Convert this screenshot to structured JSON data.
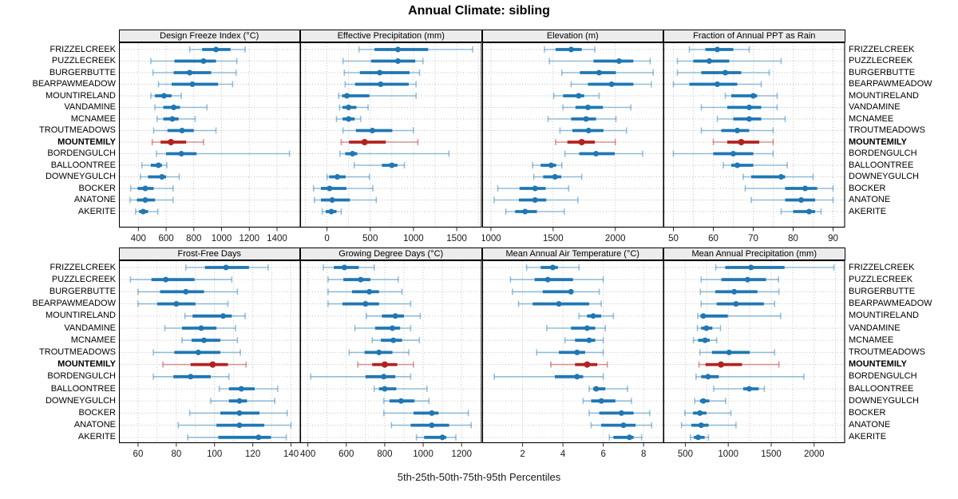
{
  "title": "Annual Climate: sibling",
  "caption": "5th-25th-50th-75th-95th Percentiles",
  "colors": {
    "series_blue": "#1f77b4",
    "series_blue_light": "rgba(31,119,180,0.45)",
    "highlight_red": "#b22222",
    "highlight_red_light": "rgba(178,34,34,0.45)",
    "grid": "#bdbdbd",
    "strip_bg": "#ececec",
    "frame": "#000000",
    "tick": "#333333"
  },
  "chart_data": {
    "type": "trellis-dotplot-percentiles",
    "percentile_labels": [
      "5th",
      "25th",
      "50th",
      "75th",
      "95th"
    ],
    "sites": [
      "FRIZZELCREEK",
      "PUZZLECREEK",
      "BURGERBUTTE",
      "BEARPAWMEADOW",
      "MOUNTIRELAND",
      "VANDAMINE",
      "MCNAMEE",
      "TROUTMEADOWS",
      "MOUNTEMILY",
      "BORDENGULCH",
      "BALLOONTREE",
      "DOWNEYGULCH",
      "BOCKER",
      "ANATONE",
      "AKERITE"
    ],
    "highlight_site": "MOUNTEMILY",
    "layout": {
      "rows": 2,
      "cols": 4,
      "legend": "none",
      "grid": "dotted"
    },
    "panels": [
      {
        "title": "Design Freeze Index (°C)",
        "row": 0,
        "col": 0,
        "xlim": [
          260,
          1570
        ],
        "grid_ticks": [
          400,
          600,
          800,
          1000,
          1200,
          1400
        ],
        "axis_ticks": [
          400,
          600,
          800,
          1000,
          1200,
          1400
        ],
        "axis_labels": [
          "400",
          "600",
          "800",
          "1000",
          "1200",
          "1400"
        ],
        "values": [
          [
            770,
            860,
            960,
            1065,
            1170
          ],
          [
            490,
            660,
            870,
            960,
            1110
          ],
          [
            505,
            655,
            770,
            925,
            1105
          ],
          [
            545,
            640,
            790,
            975,
            1080
          ],
          [
            490,
            520,
            585,
            640,
            710
          ],
          [
            520,
            580,
            655,
            700,
            895
          ],
          [
            535,
            580,
            645,
            690,
            810
          ],
          [
            510,
            610,
            715,
            800,
            960
          ],
          [
            500,
            560,
            635,
            745,
            870
          ],
          [
            530,
            600,
            710,
            820,
            1490
          ],
          [
            425,
            490,
            545,
            570,
            605
          ],
          [
            415,
            470,
            570,
            600,
            695
          ],
          [
            345,
            395,
            450,
            510,
            650
          ],
          [
            340,
            390,
            450,
            520,
            650
          ],
          [
            380,
            405,
            435,
            470,
            540
          ]
        ]
      },
      {
        "title": "Effective Precipitation (mm)",
        "row": 0,
        "col": 1,
        "xlim": [
          -310,
          1790
        ],
        "grid_ticks": [
          -250,
          0,
          250,
          500,
          750,
          1000,
          1250,
          1500,
          1750
        ],
        "axis_ticks": [
          0,
          500,
          1000,
          1500
        ],
        "axis_labels": [
          "0",
          "500",
          "1000",
          "1500"
        ],
        "values": [
          [
            370,
            550,
            820,
            1170,
            1685
          ],
          [
            185,
            510,
            820,
            1020,
            1110
          ],
          [
            200,
            380,
            610,
            955,
            1070
          ],
          [
            210,
            325,
            620,
            945,
            1030
          ],
          [
            135,
            175,
            230,
            490,
            1030
          ],
          [
            145,
            180,
            250,
            340,
            475
          ],
          [
            110,
            180,
            250,
            320,
            390
          ],
          [
            185,
            335,
            525,
            755,
            1000
          ],
          [
            165,
            255,
            435,
            680,
            1050
          ],
          [
            150,
            210,
            295,
            350,
            1410
          ],
          [
            315,
            635,
            750,
            815,
            895
          ],
          [
            0,
            25,
            120,
            215,
            490
          ],
          [
            -155,
            -70,
            30,
            225,
            530
          ],
          [
            -145,
            -70,
            60,
            265,
            570
          ],
          [
            -55,
            -15,
            50,
            110,
            165
          ]
        ]
      },
      {
        "title": "Elevation (m)",
        "row": 0,
        "col": 2,
        "xlim": [
          930,
          2390
        ],
        "grid_ticks": [
          1000,
          1500,
          2000
        ],
        "axis_ticks": [
          1000,
          1500,
          2000
        ],
        "axis_labels": [
          "1000",
          "1500",
          "2000"
        ],
        "values": [
          [
            1430,
            1520,
            1645,
            1730,
            1835
          ],
          [
            1470,
            1825,
            2030,
            2145,
            2280
          ],
          [
            1570,
            1715,
            1870,
            2005,
            2305
          ],
          [
            1645,
            1780,
            1970,
            2145,
            2290
          ],
          [
            1505,
            1580,
            1705,
            1750,
            1870
          ],
          [
            1580,
            1680,
            1780,
            1900,
            2125
          ],
          [
            1460,
            1645,
            1765,
            1845,
            2005
          ],
          [
            1555,
            1655,
            1785,
            1905,
            2090
          ],
          [
            1520,
            1615,
            1730,
            1835,
            2000
          ],
          [
            1595,
            1710,
            1845,
            1995,
            2220
          ],
          [
            1335,
            1400,
            1485,
            1525,
            1570
          ],
          [
            1345,
            1420,
            1515,
            1565,
            1730
          ],
          [
            1055,
            1230,
            1355,
            1440,
            1625
          ],
          [
            1025,
            1225,
            1355,
            1445,
            1700
          ],
          [
            1120,
            1195,
            1275,
            1370,
            1590
          ]
        ]
      },
      {
        "title": "Fraction of Annual PPT as Rain",
        "row": 0,
        "col": 3,
        "xlim": [
          47.5,
          93
        ],
        "grid_ticks": [
          50,
          55,
          60,
          65,
          70,
          75,
          80,
          85,
          90
        ],
        "axis_ticks": [
          50,
          60,
          70,
          80,
          90
        ],
        "axis_labels": [
          "50",
          "60",
          "70",
          "80",
          "90"
        ],
        "values": [
          [
            54,
            58,
            61,
            65,
            69
          ],
          [
            51,
            55,
            59,
            64,
            77
          ],
          [
            51,
            57,
            63,
            67,
            74
          ],
          [
            50,
            54,
            61,
            66,
            72
          ],
          [
            63,
            64.5,
            70,
            71,
            76
          ],
          [
            57,
            63.5,
            69,
            72,
            76
          ],
          [
            61,
            65,
            69,
            72,
            78
          ],
          [
            57,
            62,
            66,
            69,
            75
          ],
          [
            60,
            63.5,
            67,
            71.5,
            75
          ],
          [
            50,
            60,
            65,
            70,
            75
          ],
          [
            62.5,
            64.5,
            66,
            70,
            78.5
          ],
          [
            67.5,
            69.5,
            77,
            78,
            85
          ],
          [
            68,
            78,
            83,
            86,
            90
          ],
          [
            69.5,
            78,
            82,
            85.5,
            90
          ],
          [
            77,
            80,
            84,
            85.5,
            87
          ]
        ]
      },
      {
        "title": "Frost-Free Days",
        "row": 1,
        "col": 0,
        "xlim": [
          50,
          145
        ],
        "grid_ticks": [
          60,
          70,
          80,
          90,
          100,
          110,
          120,
          130,
          140
        ],
        "axis_ticks": [
          60,
          80,
          100,
          120,
          140
        ],
        "axis_labels": [
          "60",
          "80",
          "100",
          "120",
          "140"
        ],
        "values": [
          [
            85,
            95,
            106,
            118,
            128
          ],
          [
            56,
            67,
            74.5,
            89.5,
            109
          ],
          [
            60,
            71.5,
            85,
            94.5,
            112
          ],
          [
            60,
            70,
            80,
            90,
            107
          ],
          [
            84.5,
            88.5,
            104.5,
            109,
            116
          ],
          [
            74,
            83,
            93,
            101,
            111
          ],
          [
            83,
            88,
            94.5,
            103,
            112
          ],
          [
            68,
            79,
            91.5,
            103,
            113.5
          ],
          [
            73,
            87.5,
            99,
            107,
            116.5
          ],
          [
            68,
            78.5,
            87.5,
            98,
            107.5
          ],
          [
            102.5,
            107.5,
            114,
            121,
            133
          ],
          [
            98,
            107.5,
            113,
            117,
            131.5
          ],
          [
            87,
            103,
            113,
            123.5,
            138
          ],
          [
            81,
            101,
            113,
            126,
            140
          ],
          [
            86,
            102,
            123,
            129.5,
            137.5
          ]
        ]
      },
      {
        "title": "Growing Degree Days (°C)",
        "row": 1,
        "col": 1,
        "xlim": [
          360,
          1305
        ],
        "grid_ticks": [
          400,
          500,
          600,
          700,
          800,
          900,
          1000,
          1100,
          1200,
          1300
        ],
        "axis_ticks": [
          400,
          600,
          800,
          1000,
          1200
        ],
        "axis_labels": [
          "400",
          "600",
          "800",
          "1000",
          "1200"
        ],
        "values": [
          [
            480,
            535,
            590,
            665,
            745
          ],
          [
            505,
            585,
            675,
            725,
            870
          ],
          [
            505,
            630,
            720,
            770,
            890
          ],
          [
            505,
            580,
            700,
            770,
            935
          ],
          [
            705,
            785,
            855,
            900,
            985
          ],
          [
            645,
            750,
            840,
            880,
            935
          ],
          [
            735,
            780,
            845,
            890,
            980
          ],
          [
            615,
            695,
            770,
            840,
            925
          ],
          [
            660,
            735,
            800,
            865,
            950
          ],
          [
            415,
            700,
            795,
            855,
            935
          ],
          [
            745,
            770,
            800,
            860,
            1020
          ],
          [
            795,
            825,
            885,
            955,
            1030
          ],
          [
            795,
            950,
            1045,
            1080,
            1235
          ],
          [
            835,
            935,
            1045,
            1135,
            1250
          ],
          [
            965,
            1005,
            1100,
            1120,
            1170
          ]
        ]
      },
      {
        "title": "Mean Annual Air Temperature (°C)",
        "row": 1,
        "col": 2,
        "xlim": [
          0,
          9
        ],
        "grid_ticks": [
          2,
          4,
          6,
          8
        ],
        "axis_ticks": [
          2,
          4,
          6,
          8
        ],
        "axis_labels": [
          "2",
          "4",
          "6",
          "8"
        ],
        "values": [
          [
            2.2,
            2.9,
            3.5,
            3.75,
            4.8
          ],
          [
            1.4,
            2.6,
            3.25,
            4.5,
            6.0
          ],
          [
            1.5,
            3.0,
            4.4,
            4.5,
            5.8
          ],
          [
            1.8,
            2.5,
            3.8,
            5.3,
            5.9
          ],
          [
            4.8,
            5.2,
            5.5,
            5.9,
            6.5
          ],
          [
            3.2,
            4.4,
            5.2,
            5.6,
            6.1
          ],
          [
            4.1,
            4.6,
            5.3,
            5.6,
            6.0
          ],
          [
            2.7,
            3.8,
            4.7,
            5.1,
            6.0
          ],
          [
            3.4,
            4.6,
            5.2,
            5.7,
            6.2
          ],
          [
            0.6,
            3.6,
            4.7,
            5.0,
            6.0
          ],
          [
            5.3,
            5.5,
            5.65,
            6.1,
            7.2
          ],
          [
            5.0,
            5.4,
            5.9,
            6.6,
            7.4
          ],
          [
            5.3,
            5.8,
            6.9,
            7.5,
            8.3
          ],
          [
            5.4,
            5.9,
            7.0,
            7.6,
            8.4
          ],
          [
            6.3,
            6.5,
            7.3,
            7.5,
            7.9
          ]
        ]
      },
      {
        "title": "Mean Annual Precipitation (mm)",
        "row": 1,
        "col": 3,
        "xlim": [
          245,
          2360
        ],
        "grid_ticks": [
          500,
          750,
          1000,
          1250,
          1500,
          1750,
          2000,
          2250
        ],
        "axis_ticks": [
          500,
          1000,
          1500,
          2000
        ],
        "axis_labels": [
          "500",
          "1000",
          "1500",
          "2000"
        ],
        "values": [
          [
            855,
            965,
            1265,
            1655,
            2230
          ],
          [
            685,
            920,
            1225,
            1440,
            1585
          ],
          [
            675,
            850,
            1070,
            1340,
            1590
          ],
          [
            685,
            865,
            1090,
            1415,
            1540
          ],
          [
            645,
            675,
            710,
            995,
            1610
          ],
          [
            640,
            685,
            745,
            815,
            910
          ],
          [
            595,
            650,
            730,
            785,
            865
          ],
          [
            670,
            810,
            1010,
            1250,
            1540
          ],
          [
            660,
            735,
            915,
            1160,
            1590
          ],
          [
            625,
            685,
            765,
            890,
            1880
          ],
          [
            830,
            1175,
            1245,
            1355,
            1420
          ],
          [
            610,
            670,
            710,
            780,
            970
          ],
          [
            495,
            590,
            670,
            745,
            1030
          ],
          [
            455,
            570,
            685,
            770,
            1090
          ],
          [
            560,
            600,
            650,
            725,
            770
          ]
        ]
      }
    ]
  }
}
